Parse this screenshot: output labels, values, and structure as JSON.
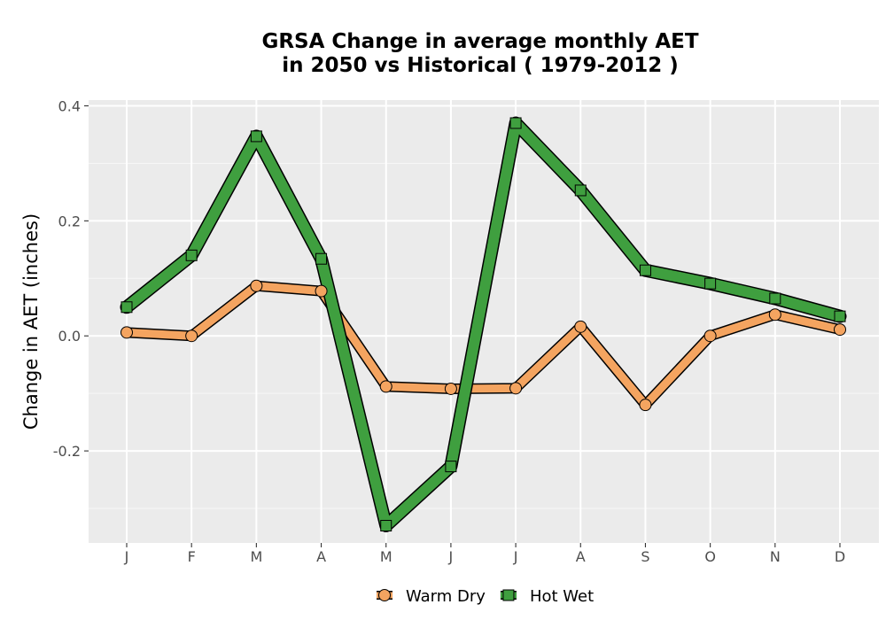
{
  "chart_data": {
    "type": "line",
    "title_lines": [
      "GRSA  Change in average monthly AET",
      "in 2050 vs Historical ( 1979-2012 )"
    ],
    "xlabel": "",
    "ylabel": "Change in AET (inches)",
    "categories": [
      "J",
      "F",
      "M",
      "A",
      "M",
      "J",
      "J",
      "A",
      "S",
      "O",
      "N",
      "D"
    ],
    "ylim": [
      -0.36,
      0.41
    ],
    "yticks": [
      -0.2,
      0.0,
      0.2,
      0.4
    ],
    "ytick_labels": [
      "-0.2",
      "0.0",
      "0.2",
      "0.4"
    ],
    "grid": true,
    "legend_position": "bottom",
    "series": [
      {
        "name": "Warm Dry",
        "marker": "circle",
        "color": "#f4a460",
        "values": [
          0.006,
          0.0,
          0.087,
          0.078,
          -0.088,
          -0.092,
          -0.091,
          0.016,
          -0.12,
          0.0,
          0.037,
          0.011
        ]
      },
      {
        "name": "Hot Wet",
        "marker": "square",
        "color": "#3f9f3f",
        "values": [
          0.05,
          0.14,
          0.347,
          0.134,
          -0.33,
          -0.227,
          0.37,
          0.253,
          0.114,
          0.091,
          0.065,
          0.034
        ]
      }
    ]
  }
}
